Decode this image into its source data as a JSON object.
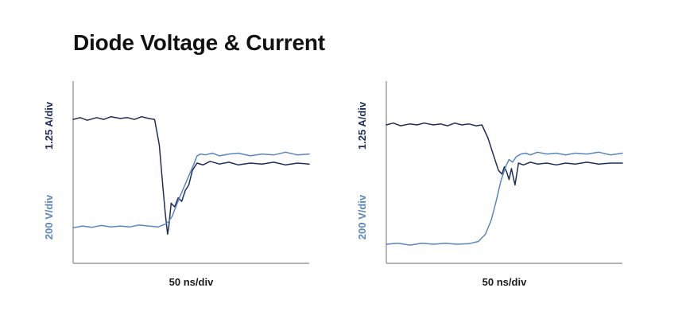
{
  "title": "Diode Voltage & Current",
  "colors": {
    "current": "#1f2d5a",
    "voltage": "#5a86c0",
    "axis": "#9a9a9a"
  },
  "chart_data": [
    {
      "type": "line",
      "title": "",
      "xlabel": "50 ns/div",
      "ylabel_current": "1.25 A/div",
      "ylabel_voltage": "200 V/div",
      "xlim": [
        0,
        10
      ],
      "ylim": [
        0,
        10
      ],
      "grid": false,
      "series": [
        {
          "key": "current",
          "x": [
            0,
            0.3,
            0.6,
            1,
            1.3,
            1.6,
            2,
            2.3,
            2.6,
            2.9,
            3.2,
            3.45,
            3.65,
            3.8,
            3.9,
            4.0,
            4.05,
            4.15,
            4.3,
            4.45,
            4.6,
            4.75,
            4.9,
            5.05,
            5.25,
            5.5,
            5.8,
            6.2,
            6.6,
            7.0,
            7.5,
            8,
            8.5,
            9,
            9.5,
            10
          ],
          "y": [
            7.9,
            8.0,
            7.85,
            8.0,
            7.9,
            8.05,
            7.95,
            8.0,
            7.9,
            8.05,
            7.95,
            7.9,
            6.5,
            4.2,
            2.8,
            1.6,
            2.0,
            3.3,
            3.1,
            3.6,
            3.4,
            4.0,
            4.3,
            5.1,
            5.5,
            5.4,
            5.6,
            5.45,
            5.55,
            5.4,
            5.5,
            5.45,
            5.55,
            5.4,
            5.5,
            5.45
          ]
        },
        {
          "key": "voltage",
          "x": [
            0,
            0.4,
            0.8,
            1.2,
            1.6,
            2.0,
            2.4,
            2.8,
            3.2,
            3.6,
            3.9,
            4.05,
            4.2,
            4.35,
            4.5,
            4.7,
            4.9,
            5.1,
            5.25,
            5.4,
            5.6,
            5.9,
            6.2,
            6.6,
            7.0,
            7.5,
            8,
            8.5,
            9,
            9.5,
            10
          ],
          "y": [
            1.95,
            2.05,
            1.98,
            2.08,
            2.0,
            2.05,
            2.0,
            2.1,
            2.05,
            2.0,
            2.15,
            2.3,
            2.6,
            3.1,
            3.6,
            4.2,
            4.8,
            5.4,
            5.9,
            6.0,
            5.95,
            6.05,
            5.9,
            6.0,
            6.05,
            5.9,
            6.0,
            5.95,
            6.1,
            5.95,
            6.0
          ]
        }
      ]
    },
    {
      "type": "line",
      "title": "",
      "xlabel": "50 ns/div",
      "ylabel_current": "1.25 A/div",
      "ylabel_voltage": "200 V/div",
      "xlim": [
        0,
        10
      ],
      "ylim": [
        0,
        10
      ],
      "grid": false,
      "series": [
        {
          "key": "current",
          "x": [
            0,
            0.3,
            0.6,
            1,
            1.3,
            1.6,
            2,
            2.3,
            2.6,
            2.9,
            3.2,
            3.5,
            3.8,
            4.05,
            4.3,
            4.55,
            4.75,
            4.9,
            5.0,
            5.1,
            5.2,
            5.3,
            5.45,
            5.6,
            5.8,
            6.1,
            6.4,
            6.8,
            7.2,
            7.6,
            8,
            8.5,
            9,
            9.5,
            10
          ],
          "y": [
            7.6,
            7.7,
            7.55,
            7.65,
            7.6,
            7.7,
            7.6,
            7.65,
            7.55,
            7.7,
            7.6,
            7.65,
            7.55,
            7.6,
            6.9,
            5.9,
            5.1,
            4.9,
            5.3,
            5.0,
            4.6,
            5.2,
            4.3,
            5.5,
            5.4,
            5.55,
            5.45,
            5.5,
            5.4,
            5.5,
            5.45,
            5.55,
            5.45,
            5.5,
            5.5
          ]
        },
        {
          "key": "voltage",
          "x": [
            0,
            0.5,
            1,
            1.5,
            2,
            2.5,
            3,
            3.5,
            3.9,
            4.2,
            4.45,
            4.65,
            4.85,
            5.05,
            5.2,
            5.35,
            5.5,
            5.7,
            5.9,
            6.1,
            6.4,
            6.8,
            7.2,
            7.6,
            8,
            8.5,
            9,
            9.5,
            10
          ],
          "y": [
            1.05,
            1.1,
            1.0,
            1.1,
            1.05,
            1.1,
            1.05,
            1.08,
            1.2,
            1.6,
            2.4,
            3.4,
            4.5,
            5.3,
            5.7,
            5.55,
            5.85,
            6.0,
            6.05,
            5.95,
            6.1,
            6.0,
            6.05,
            5.95,
            6.05,
            6.0,
            6.1,
            5.95,
            6.05
          ]
        }
      ]
    }
  ]
}
